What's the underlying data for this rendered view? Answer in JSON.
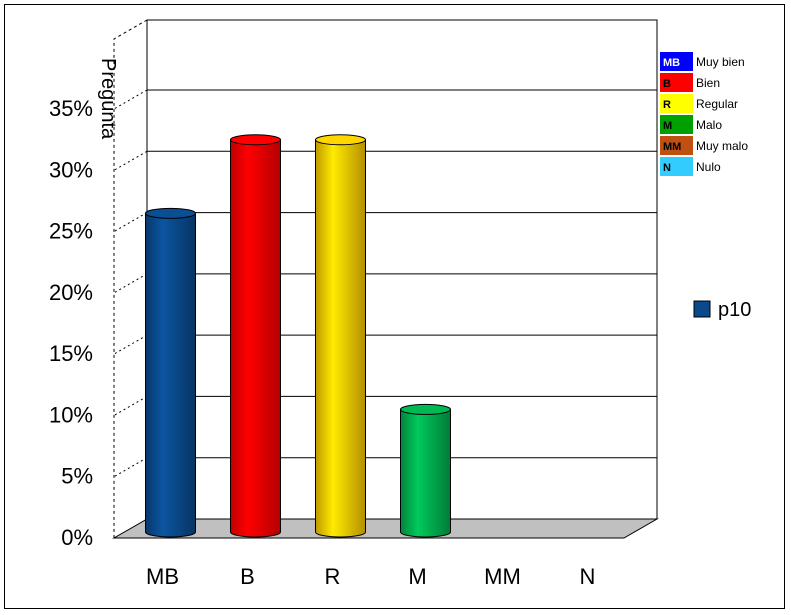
{
  "chart_data": {
    "type": "bar",
    "categories": [
      "MB",
      "B",
      "R",
      "M",
      "MM",
      "N"
    ],
    "values": [
      26,
      32,
      32,
      10,
      0,
      0
    ],
    "value_unit": "%",
    "bar_colors": [
      "#0a4a8c",
      "#ff0000",
      "#ffcc00",
      "#00b050",
      "#c05010",
      "#33ccff"
    ],
    "ylabel": "Pregunta",
    "ylim": [
      0,
      35
    ],
    "yticks": [
      "0%",
      "5%",
      "10%",
      "15%",
      "20%",
      "25%",
      "30%",
      "35%"
    ],
    "grid": true,
    "series": [
      {
        "name": "p10",
        "color": "#0a4a8c"
      }
    ],
    "legend_position": "right"
  },
  "code_legend": [
    {
      "code": "MB",
      "label": "Muy bien",
      "color": "#0000ff",
      "code_color": "#ffffff"
    },
    {
      "code": "B",
      "label": "Bien",
      "color": "#ff0000",
      "code_color": "#000000"
    },
    {
      "code": "R",
      "label": "Regular",
      "color": "#ffff00",
      "code_color": "#000000"
    },
    {
      "code": "M",
      "label": "Malo",
      "color": "#00a000",
      "code_color": "#000000"
    },
    {
      "code": "MM",
      "label": "Muy malo",
      "color": "#c05010",
      "code_color": "#000000"
    },
    {
      "code": "N",
      "label": "Nulo",
      "color": "#33ccff",
      "code_color": "#000000"
    }
  ]
}
